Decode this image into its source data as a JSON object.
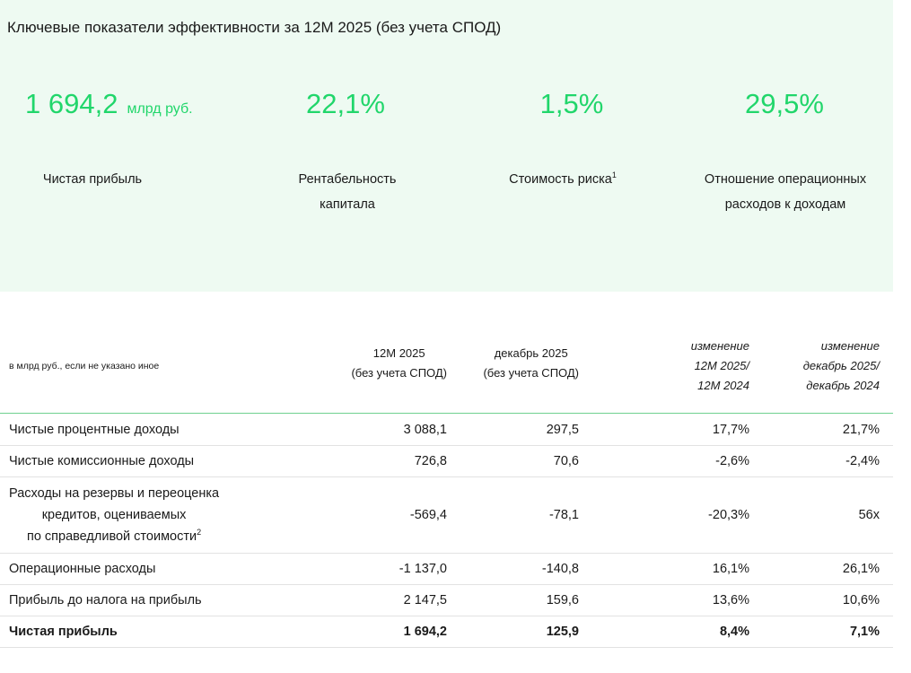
{
  "header": {
    "title": "Ключевые показатели эффективности за 12М 2025 (без учета СПОД)"
  },
  "kpis": [
    {
      "value": "1 694,2",
      "unit": "млрд руб.",
      "label": [
        "Чистая прибыль"
      ]
    },
    {
      "value": "22,1%",
      "label": [
        "Рентабельность",
        "капитала"
      ]
    },
    {
      "value": "1,5%",
      "label": [
        "Стоимость риска"
      ],
      "note": "1"
    },
    {
      "value": "29,5%",
      "label": [
        "Отношение операционных",
        "расходов к доходам"
      ]
    }
  ],
  "table": {
    "columns": [
      [
        "в млрд руб., если не указано иное"
      ],
      [
        "12М 2025",
        "(без учета СПОД)"
      ],
      [
        "декабрь 2025",
        "(без учета СПОД)"
      ],
      [
        "изменение",
        "12М 2025/",
        "12М 2024"
      ],
      [
        "изменение",
        "декабрь 2025/",
        "декабрь 2024"
      ]
    ],
    "rows": [
      {
        "label": [
          "Чистые процентные доходы"
        ],
        "cells": [
          "3 088,1",
          "297,5",
          "17,7%",
          "21,7%"
        ]
      },
      {
        "label": [
          "Чистые комиссионные доходы"
        ],
        "cells": [
          "726,8",
          "70,6",
          "-2,6%",
          "-2,4%"
        ]
      },
      {
        "label": [
          "Расходы на резервы и переоценка",
          "кредитов, оцениваемых",
          "по справедливой стоимости"
        ],
        "note": "2",
        "cells": [
          "-569,4",
          "-78,1",
          "-20,3%",
          "56x"
        ]
      },
      {
        "label": [
          "Операционные расходы"
        ],
        "cells": [
          "-1 137,0",
          "-140,8",
          "16,1%",
          "26,1%"
        ]
      },
      {
        "label": [
          "Прибыль до налога на прибыль"
        ],
        "cells": [
          "2 147,5",
          "159,6",
          "13,6%",
          "10,6%"
        ]
      },
      {
        "label": [
          "Чистая прибыль"
        ],
        "cells": [
          "1 694,2",
          "125,9",
          "8,4%",
          "7,1%"
        ],
        "bold": true
      }
    ]
  }
}
